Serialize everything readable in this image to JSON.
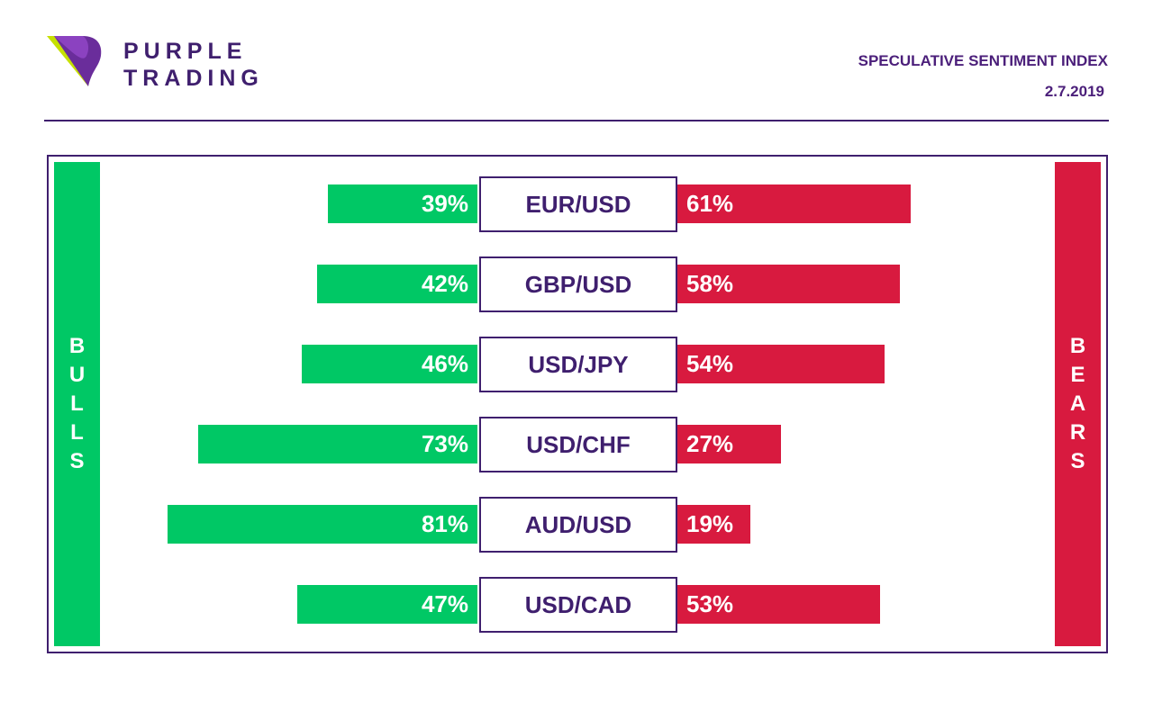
{
  "brand": {
    "line1": "PURPLE",
    "line2": "TRADING"
  },
  "header": {
    "title": "SPECULATIVE SENTIMENT INDEX",
    "date": "2.7.2019"
  },
  "colors": {
    "bulls": "#00c865",
    "bears": "#d81a3f",
    "accent": "#3f1f6e"
  },
  "sides": {
    "bulls": "BULLS",
    "bears": "BEARS"
  },
  "chart_data": {
    "type": "bar",
    "orientation": "horizontal-diverging",
    "categories": [
      "EUR/USD",
      "GBP/USD",
      "USD/JPY",
      "USD/CHF",
      "AUD/USD",
      "USD/CAD"
    ],
    "series": [
      {
        "name": "BULLS",
        "values": [
          39,
          42,
          46,
          73,
          81,
          47
        ],
        "labels": [
          "39%",
          "42%",
          "46%",
          "73%",
          "81%",
          "47%"
        ]
      },
      {
        "name": "BEARS",
        "values": [
          61,
          58,
          54,
          27,
          19,
          53
        ],
        "labels": [
          "61%",
          "58%",
          "54%",
          "27%",
          "19%",
          "53%"
        ]
      }
    ],
    "unit": "%"
  }
}
